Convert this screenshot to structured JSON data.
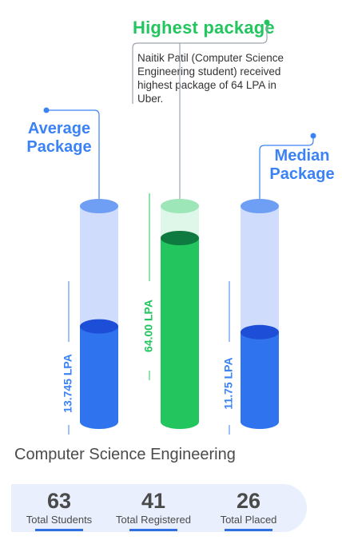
{
  "highlight": {
    "title": "Highest package",
    "description": "Naitik Patil (Computer Science Engineering student) received highest package of 64 LPA in Uber."
  },
  "colors": {
    "blue": "#3b82f6",
    "green": "#22c55e",
    "light_blue": "#cfdcfb",
    "light_green": "#c9f1d8"
  },
  "chart_data": {
    "type": "bar",
    "categories": [
      "Average Package",
      "Highest package",
      "Median Package"
    ],
    "values": [
      13.745,
      64.0,
      11.75
    ],
    "value_labels": [
      "13.745 LPA",
      "64.00 LPA",
      "11.75 LPA"
    ],
    "category_labels": {
      "average": [
        "Average",
        "Package"
      ],
      "median": [
        "Median",
        "Package"
      ]
    },
    "ylim": [
      0,
      64
    ],
    "ylabel": "",
    "xlabel": ""
  },
  "section": {
    "title": "Computer Science Engineering"
  },
  "stats": [
    {
      "value": "63",
      "label": "Total Students"
    },
    {
      "value": "41",
      "label": "Total Registered"
    },
    {
      "value": "26",
      "label": "Total Placed"
    }
  ]
}
